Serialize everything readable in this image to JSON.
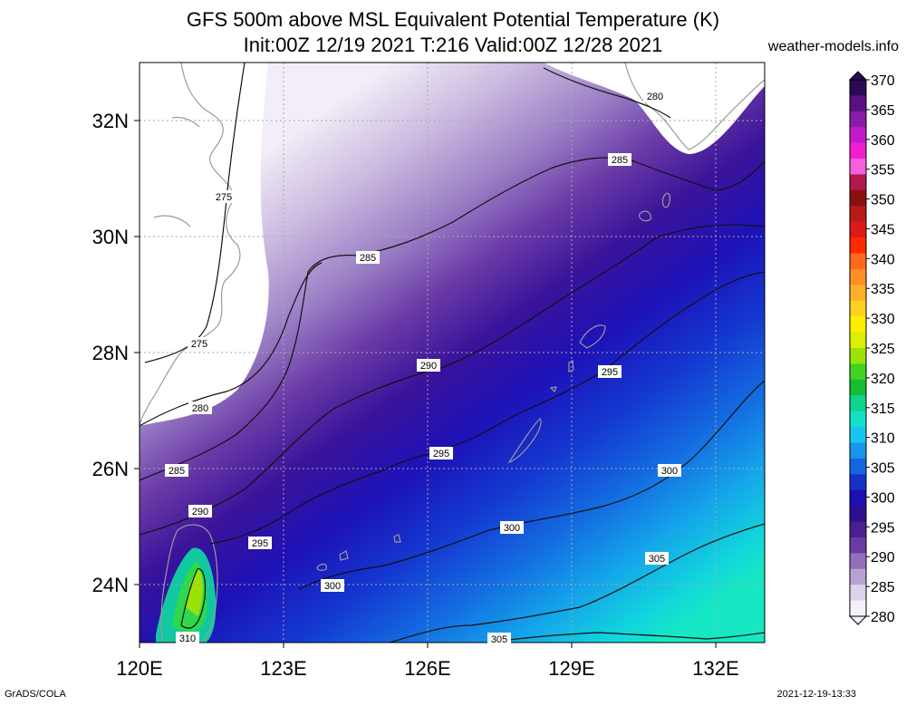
{
  "header": {
    "title_line1": "GFS 500m above MSL Equivalent Potential Temperature (K)",
    "title_line2": "Init:00Z 12/19 2021 T:216 Valid:00Z 12/28 2021",
    "site": "weather-models.info"
  },
  "footer": {
    "left": "GrADS/COLA",
    "right": "2021-12-19-13:33"
  },
  "map": {
    "lon_labels": [
      "120E",
      "123E",
      "126E",
      "129E",
      "132E"
    ],
    "lat_labels": [
      "32N",
      "30N",
      "28N",
      "26N",
      "24N"
    ],
    "contour_labels": [
      "275",
      "275",
      "280",
      "280",
      "285",
      "285",
      "285",
      "290",
      "290",
      "295",
      "295",
      "295",
      "300",
      "300",
      "300",
      "305",
      "305",
      "310"
    ]
  },
  "colorbar": {
    "units": "K",
    "ticks": [
      "370",
      "365",
      "360",
      "355",
      "350",
      "345",
      "340",
      "335",
      "330",
      "325",
      "320",
      "315",
      "310",
      "305",
      "300",
      "295",
      "290",
      "285",
      "280"
    ],
    "colors": [
      "#2b0a55",
      "#5a0f82",
      "#8a1aa8",
      "#c21acb",
      "#ef1fcf",
      "#f75ee0",
      "#b2184b",
      "#8a1010",
      "#b81a1a",
      "#dd1a1a",
      "#ff2b00",
      "#ff6a1a",
      "#ff8f24",
      "#ffb12a",
      "#ffd21f",
      "#ffee00",
      "#d9f000",
      "#9ae20a",
      "#3ed420",
      "#14bd32",
      "#0fd48c",
      "#13e0c8",
      "#1ac4f0",
      "#1796ea",
      "#1366e0",
      "#1433c6",
      "#1d0fb0",
      "#2d0f8f",
      "#4a1f8f",
      "#6a3aa6",
      "#9270be",
      "#b8a2d2",
      "#ddd3ea",
      "#f4f1f9"
    ]
  }
}
